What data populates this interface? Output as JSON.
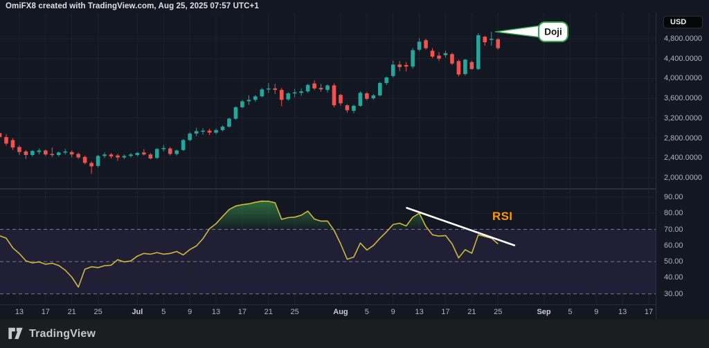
{
  "attribution": "OmiFX8 created with TradingView.com, Aug 25, 2025 07:57 UTC+1",
  "footer": {
    "brand": "TradingView"
  },
  "price_axis": {
    "currency_badge": "USD",
    "ticks": [
      {
        "value": 4800,
        "label": "4,800.0000"
      },
      {
        "value": 4400,
        "label": "4,400.0000"
      },
      {
        "value": 4000,
        "label": "4,000.0000"
      },
      {
        "value": 3600,
        "label": "3,600.0000"
      },
      {
        "value": 3200,
        "label": "3,200.0000"
      },
      {
        "value": 2800,
        "label": "2,800.0000"
      },
      {
        "value": 2400,
        "label": "2,400.0000"
      },
      {
        "value": 2000,
        "label": "2,000.0000"
      }
    ]
  },
  "rsi_axis": {
    "ticks": [
      {
        "value": 90,
        "label": "90.00"
      },
      {
        "value": 80,
        "label": "80.00"
      },
      {
        "value": 70,
        "label": "70.00"
      },
      {
        "value": 60,
        "label": "60.00"
      },
      {
        "value": 50,
        "label": "50.00"
      },
      {
        "value": 40,
        "label": "40.00"
      },
      {
        "value": 30,
        "label": "30.00"
      }
    ]
  },
  "chart_data": {
    "type": "candlestick_with_rsi",
    "title": "",
    "currency": "USD",
    "price_range_visible": [
      2000,
      4800
    ],
    "rsi_range_visible": [
      30,
      90
    ],
    "time_ticks": [
      {
        "label": "13",
        "i": 2
      },
      {
        "label": "17",
        "i": 6
      },
      {
        "label": "21",
        "i": 10
      },
      {
        "label": "25",
        "i": 14
      },
      {
        "label": "Jul",
        "i": 20,
        "bold": true
      },
      {
        "label": "5",
        "i": 24
      },
      {
        "label": "9",
        "i": 28
      },
      {
        "label": "13",
        "i": 32
      },
      {
        "label": "17",
        "i": 36
      },
      {
        "label": "21",
        "i": 40
      },
      {
        "label": "25",
        "i": 44
      },
      {
        "label": "Aug",
        "i": 51,
        "bold": true
      },
      {
        "label": "5",
        "i": 55
      },
      {
        "label": "9",
        "i": 59
      },
      {
        "label": "13",
        "i": 63
      },
      {
        "label": "17",
        "i": 67
      },
      {
        "label": "21",
        "i": 71
      },
      {
        "label": "25",
        "i": 75
      },
      {
        "label": "Sep",
        "i": 82,
        "bold": true
      },
      {
        "label": "5",
        "i": 86
      },
      {
        "label": "9",
        "i": 90
      },
      {
        "label": "13",
        "i": 94
      },
      {
        "label": "17",
        "i": 98
      }
    ],
    "candles_ohlc": [
      [
        2900,
        2920,
        2780,
        2820
      ],
      [
        2820,
        2880,
        2650,
        2690
      ],
      [
        2760,
        2800,
        2560,
        2610
      ],
      [
        2620,
        2650,
        2460,
        2520
      ],
      [
        2530,
        2560,
        2380,
        2460
      ],
      [
        2460,
        2560,
        2430,
        2540
      ],
      [
        2520,
        2590,
        2470,
        2550
      ],
      [
        2550,
        2570,
        2440,
        2470
      ],
      [
        2480,
        2610,
        2420,
        2460
      ],
      [
        2460,
        2530,
        2430,
        2510
      ],
      [
        2510,
        2580,
        2470,
        2530
      ],
      [
        2520,
        2550,
        2410,
        2470
      ],
      [
        2480,
        2510,
        2380,
        2410
      ],
      [
        2420,
        2450,
        2270,
        2300
      ],
      [
        2300,
        2330,
        2080,
        2230
      ],
      [
        2240,
        2460,
        2210,
        2440
      ],
      [
        2440,
        2510,
        2400,
        2470
      ],
      [
        2470,
        2500,
        2390,
        2430
      ],
      [
        2450,
        2480,
        2340,
        2410
      ],
      [
        2410,
        2470,
        2380,
        2440
      ],
      [
        2440,
        2500,
        2410,
        2470
      ],
      [
        2460,
        2520,
        2430,
        2500
      ],
      [
        2510,
        2580,
        2450,
        2470
      ],
      [
        2470,
        2500,
        2370,
        2390
      ],
      [
        2400,
        2600,
        2380,
        2580
      ],
      [
        2580,
        2660,
        2530,
        2600
      ],
      [
        2590,
        2620,
        2450,
        2480
      ],
      [
        2480,
        2570,
        2450,
        2550
      ],
      [
        2560,
        2780,
        2540,
        2760
      ],
      [
        2760,
        2920,
        2740,
        2890
      ],
      [
        2890,
        3010,
        2840,
        2940
      ],
      [
        2930,
        3000,
        2870,
        2950
      ],
      [
        2950,
        2990,
        2860,
        2910
      ],
      [
        2910,
        2990,
        2880,
        2960
      ],
      [
        2960,
        3060,
        2930,
        3030
      ],
      [
        3030,
        3210,
        3010,
        3190
      ],
      [
        3190,
        3440,
        3170,
        3420
      ],
      [
        3420,
        3570,
        3400,
        3540
      ],
      [
        3540,
        3660,
        3470,
        3570
      ],
      [
        3570,
        3670,
        3530,
        3640
      ],
      [
        3640,
        3810,
        3620,
        3780
      ],
      [
        3780,
        3910,
        3710,
        3800
      ],
      [
        3800,
        3890,
        3690,
        3770
      ],
      [
        3770,
        3810,
        3440,
        3570
      ],
      [
        3580,
        3720,
        3550,
        3700
      ],
      [
        3700,
        3790,
        3620,
        3720
      ],
      [
        3710,
        3800,
        3650,
        3740
      ],
      [
        3740,
        3890,
        3710,
        3870
      ],
      [
        3900,
        3960,
        3770,
        3800
      ],
      [
        3810,
        3890,
        3730,
        3780
      ],
      [
        3770,
        3880,
        3720,
        3860
      ],
      [
        3860,
        3900,
        3420,
        3460
      ],
      [
        3670,
        3690,
        3450,
        3500
      ],
      [
        3460,
        3480,
        3310,
        3360
      ],
      [
        3350,
        3470,
        3300,
        3450
      ],
      [
        3450,
        3740,
        3430,
        3710
      ],
      [
        3700,
        3730,
        3560,
        3590
      ],
      [
        3600,
        3690,
        3570,
        3660
      ],
      [
        3660,
        3930,
        3640,
        3910
      ],
      [
        3910,
        4040,
        3870,
        4020
      ],
      [
        4050,
        4360,
        4020,
        4280
      ],
      [
        4280,
        4350,
        4150,
        4230
      ],
      [
        4270,
        4330,
        4140,
        4240
      ],
      [
        4240,
        4610,
        4200,
        4570
      ],
      [
        4580,
        4810,
        4550,
        4740
      ],
      [
        4770,
        4800,
        4580,
        4610
      ],
      [
        4560,
        4610,
        4410,
        4440
      ],
      [
        4460,
        4530,
        4350,
        4400
      ],
      [
        4470,
        4560,
        4420,
        4510
      ],
      [
        4490,
        4520,
        4270,
        4300
      ],
      [
        4350,
        4380,
        4040,
        4080
      ],
      [
        4090,
        4390,
        4060,
        4380
      ],
      [
        4330,
        4360,
        4180,
        4190
      ],
      [
        4190,
        4910,
        4170,
        4870
      ],
      [
        4840,
        4860,
        4660,
        4730
      ],
      [
        4780,
        4940,
        4660,
        4800
      ],
      [
        4790,
        4810,
        4580,
        4610
      ]
    ],
    "rsi_values": [
      66,
      64.5,
      58.5,
      55,
      50.5,
      49.2,
      49.8,
      48.4,
      49,
      47.6,
      44.7,
      40.4,
      34.2,
      45.3,
      46.8,
      46.3,
      47.5,
      47.8,
      51.2,
      49.8,
      50.4,
      53.4,
      55.1,
      54.6,
      55.6,
      54.6,
      55.1,
      56.3,
      54.2,
      57.5,
      59.7,
      64.2,
      70.4,
      73.5,
      78,
      82.3,
      84.5,
      85.3,
      85.8,
      86.8,
      87.5,
      87.4,
      86.5,
      76.2,
      77.3,
      77.6,
      78.8,
      81.3,
      76.4,
      75.1,
      75.2,
      69.4,
      61,
      51.5,
      52.8,
      61.5,
      57.2,
      60,
      64.5,
      68.5,
      73,
      73.8,
      72.1,
      77.5,
      80,
      71.8,
      66.6,
      65.8,
      66.2,
      61,
      52.3,
      57.4,
      55.2,
      66.6,
      65.6,
      64.5,
      61
    ],
    "rsi_levels": {
      "overbought": 70,
      "middle": 50,
      "oversold": 30
    },
    "rsi_band": [
      30,
      70
    ],
    "trendline": {
      "from": {
        "i": 61.1,
        "rsi": 83.3
      },
      "to": {
        "i": 77.5,
        "rsi": 60.1
      }
    },
    "callout": {
      "label": "Doji",
      "target": {
        "i": 74.6,
        "price": 4940
      }
    },
    "rsi_label": "RSI",
    "colors": {
      "background": "#131722",
      "grid": "#1e222d",
      "candle_up": "#26a69a",
      "candle_down": "#ef5350",
      "rsi_line": "#d1ba3a",
      "rsi_fill_green": "#3ca050",
      "band_purple": "rgba(126,87,194,0.13)",
      "dashed_level": "rgba(199,203,216,0.55)",
      "trendline": "#ffffff",
      "callout_border": "#36a84c",
      "rsi_label_color": "#ff9800",
      "axis_text": "#b2b5be"
    }
  }
}
